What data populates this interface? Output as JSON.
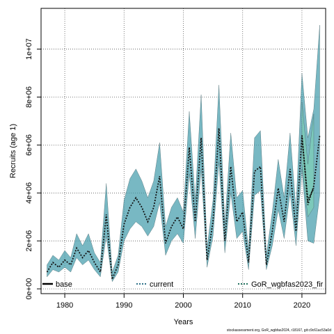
{
  "chart_data": {
    "type": "line",
    "xlabel": "Years",
    "ylabel": "Recruits (age 1)",
    "xlim": [
      1976,
      2024
    ],
    "ylim": [
      -200000,
      11700000
    ],
    "x_ticks": [
      1980,
      1990,
      2000,
      2010,
      2020
    ],
    "y_ticks": [
      0,
      2000000,
      4000000,
      6000000,
      8000000,
      10000000
    ],
    "y_tick_labels": [
      "0e+00",
      "2e+06",
      "4e+06",
      "6e+06",
      "8e+06",
      "1e+07"
    ],
    "grid": true,
    "legend_position": "bottom",
    "legend": [
      "base",
      "current",
      "GoR_wgbfas2023_fir"
    ],
    "series": [
      {
        "name": "current",
        "color": "#2b6f88",
        "band_color": "#3f9aaa",
        "x": [
          1977,
          1978,
          1979,
          1980,
          1981,
          1982,
          1983,
          1984,
          1985,
          1986,
          1987,
          1988,
          1989,
          1990,
          1991,
          1992,
          1993,
          1994,
          1995,
          1996,
          1997,
          1998,
          1999,
          2000,
          2001,
          2002,
          2003,
          2004,
          2005,
          2006,
          2007,
          2008,
          2009,
          2010,
          2011,
          2012,
          2013,
          2014,
          2015,
          2016,
          2017,
          2018,
          2019,
          2020,
          2021,
          2022,
          2023
        ],
        "values": [
          700000,
          1100000,
          900000,
          1200000,
          1000000,
          1700000,
          1300000,
          1600000,
          1100000,
          700000,
          3100000,
          400000,
          1000000,
          2700000,
          3400000,
          3800000,
          3400000,
          2800000,
          3400000,
          4700000,
          1900000,
          2600000,
          3000000,
          2500000,
          5900000,
          2800000,
          6300000,
          1200000,
          2800000,
          6700000,
          2000000,
          5100000,
          2800000,
          3200000,
          1100000,
          4900000,
          5100000,
          1000000,
          2400000,
          4200000,
          2800000,
          5000000,
          2400000,
          6400000,
          3500000,
          4300000,
          6400000
        ],
        "lower": [
          500000,
          800000,
          700000,
          900000,
          700000,
          1300000,
          1000000,
          1200000,
          800000,
          500000,
          2200000,
          300000,
          700000,
          2000000,
          2500000,
          2800000,
          2600000,
          2200000,
          2600000,
          3600000,
          1400000,
          2000000,
          2300000,
          1900000,
          4800000,
          2100000,
          5000000,
          900000,
          2200000,
          5300000,
          1500000,
          4000000,
          2100000,
          2400000,
          800000,
          3900000,
          4100000,
          800000,
          1800000,
          3300000,
          2100000,
          4000000,
          1800000,
          5000000,
          2000000,
          1900000,
          3900000
        ],
        "upper": [
          1000000,
          1400000,
          1200000,
          1600000,
          1300000,
          2300000,
          1800000,
          2300000,
          1500000,
          1100000,
          4400000,
          700000,
          1400000,
          3700000,
          4600000,
          5000000,
          4500000,
          3800000,
          4500000,
          6100000,
          2600000,
          3400000,
          3800000,
          3200000,
          7400000,
          3700000,
          8100000,
          1700000,
          3700000,
          8500000,
          2700000,
          6500000,
          3800000,
          4100000,
          1600000,
          6300000,
          6600000,
          1400000,
          3200000,
          5400000,
          3800000,
          6500000,
          3300000,
          9000000,
          6300000,
          7500000,
          11000000
        ]
      },
      {
        "name": "GoR_wgbfas2023_fir",
        "color": "#1f6f5c",
        "band_color": "#7ecfb7",
        "x": [
          2020,
          2021,
          2022
        ],
        "values": [
          6400000,
          3700000,
          4200000
        ],
        "lower": [
          5200000,
          3000000,
          3400000
        ],
        "upper": [
          7800000,
          5200000,
          7300000
        ]
      },
      {
        "name": "base",
        "color": "#000000",
        "x": [],
        "values": []
      }
    ]
  },
  "footer": "stockassessment.org, GoR_wgbfas2024, r18167, git:c9c61ac53a0d"
}
